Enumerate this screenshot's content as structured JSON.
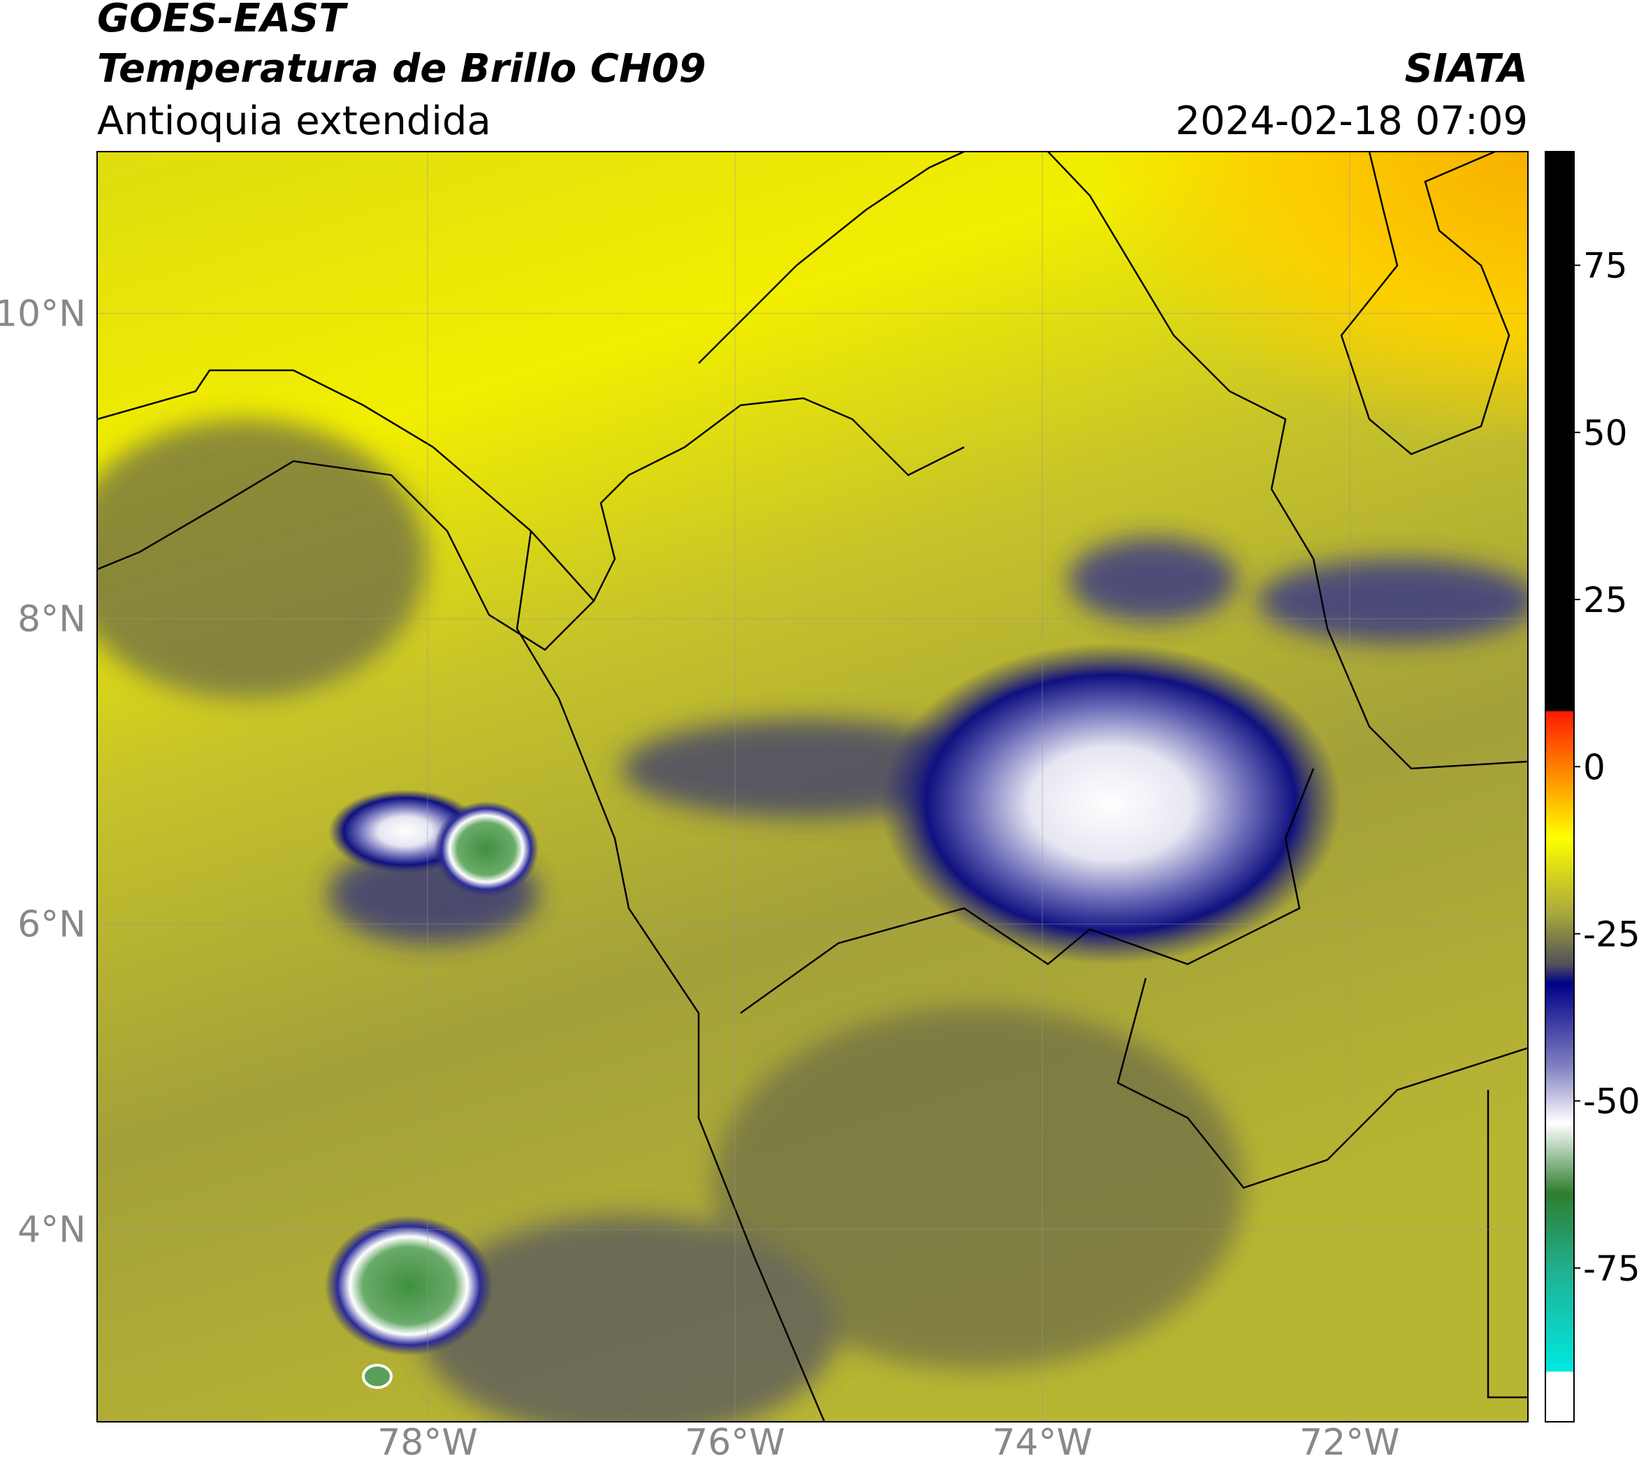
{
  "header": {
    "title": "GOES-EAST",
    "subtitle": "Temperatura de Brillo CH09",
    "region": "Antioquia extendida",
    "source": "SIATA",
    "datetime": "2024-02-18 07:09"
  },
  "map": {
    "xlim": [
      -80.15,
      -70.84
    ],
    "ylim": [
      2.74,
      11.06
    ],
    "xticks": [
      {
        "value": -78,
        "label": "78°W"
      },
      {
        "value": -76,
        "label": "76°W"
      },
      {
        "value": -74,
        "label": "74°W"
      },
      {
        "value": -72,
        "label": "72°W"
      }
    ],
    "yticks": [
      {
        "value": 4,
        "label": "4°N"
      },
      {
        "value": 6,
        "label": "6°N"
      },
      {
        "value": 8,
        "label": "8°N"
      },
      {
        "value": 10,
        "label": "10°N"
      }
    ],
    "grid": true
  },
  "colorbar": {
    "lim": [
      -98,
      92
    ],
    "ticks": [
      -75,
      -50,
      -25,
      0,
      25,
      50,
      75
    ]
  }
}
